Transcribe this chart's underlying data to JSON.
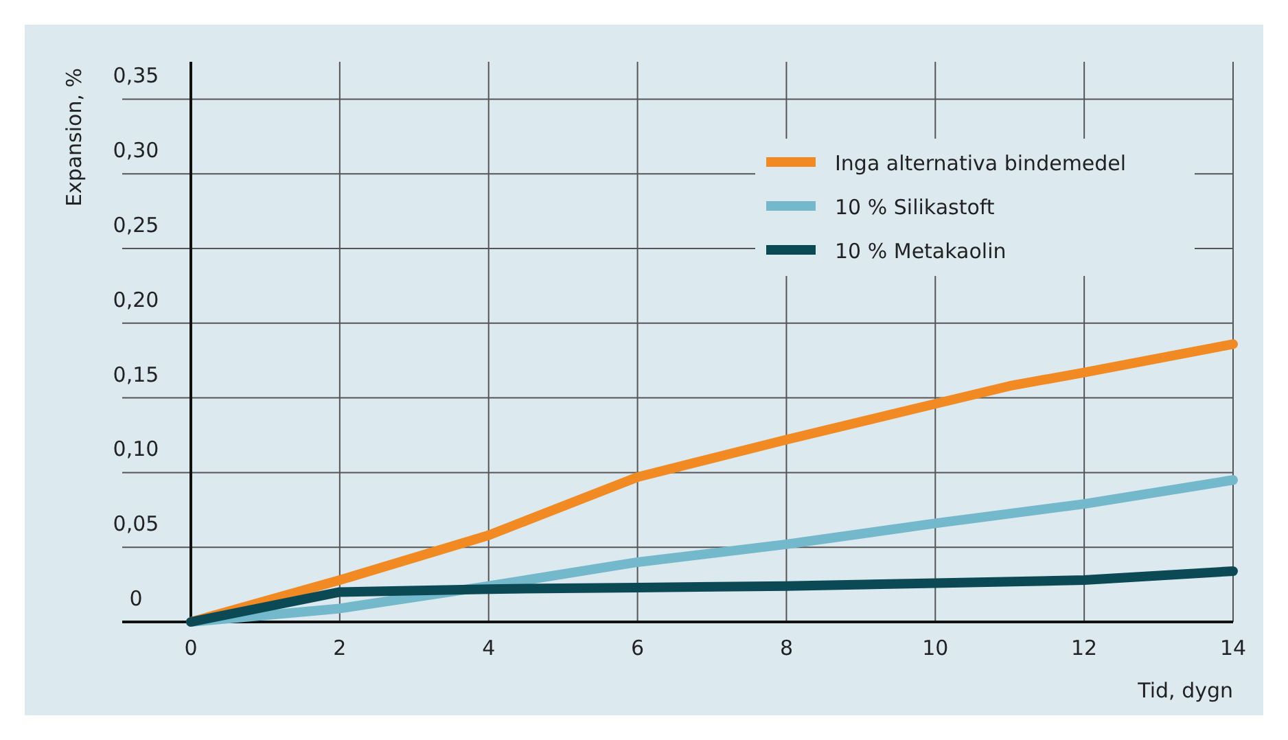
{
  "chart_data": {
    "type": "line",
    "xlabel": "Tid, dygn",
    "ylabel": "Expansion, %",
    "xlim": [
      0,
      14
    ],
    "xticks": [
      0,
      2,
      4,
      6,
      8,
      10,
      12,
      14
    ],
    "ylim": [
      0,
      0.375
    ],
    "yticks": [
      {
        "value": 0,
        "label": "0"
      },
      {
        "value": 0.05,
        "label": "0,05"
      },
      {
        "value": 0.1,
        "label": "0,10"
      },
      {
        "value": 0.15,
        "label": "0,15"
      },
      {
        "value": 0.2,
        "label": "0,20"
      },
      {
        "value": 0.25,
        "label": "0,25"
      },
      {
        "value": 0.3,
        "label": "0,30"
      },
      {
        "value": 0.35,
        "label": "0,35"
      }
    ],
    "grid": true,
    "legend": "top right",
    "marker": "none",
    "line_style": "solid",
    "series": [
      {
        "name": "Inga alternativa bindemedel",
        "color": "#f18a22",
        "x": [
          0,
          2,
          4,
          6,
          8,
          10,
          11,
          12,
          14
        ],
        "values": [
          0,
          0.028,
          0.058,
          0.097,
          0.122,
          0.146,
          0.158,
          0.167,
          0.186
        ]
      },
      {
        "name": "10 % Silikastoft",
        "color": "#74b9cb",
        "x": [
          0,
          2,
          4,
          6,
          8,
          10,
          12,
          14
        ],
        "values": [
          0,
          0.009,
          0.024,
          0.04,
          0.052,
          0.066,
          0.079,
          0.095
        ]
      },
      {
        "name": "10 % Metakaolin",
        "color": "#0b4a55",
        "x": [
          0,
          2,
          4,
          6,
          8,
          10,
          12,
          14
        ],
        "values": [
          0,
          0.02,
          0.022,
          0.023,
          0.024,
          0.026,
          0.028,
          0.034
        ]
      }
    ]
  }
}
